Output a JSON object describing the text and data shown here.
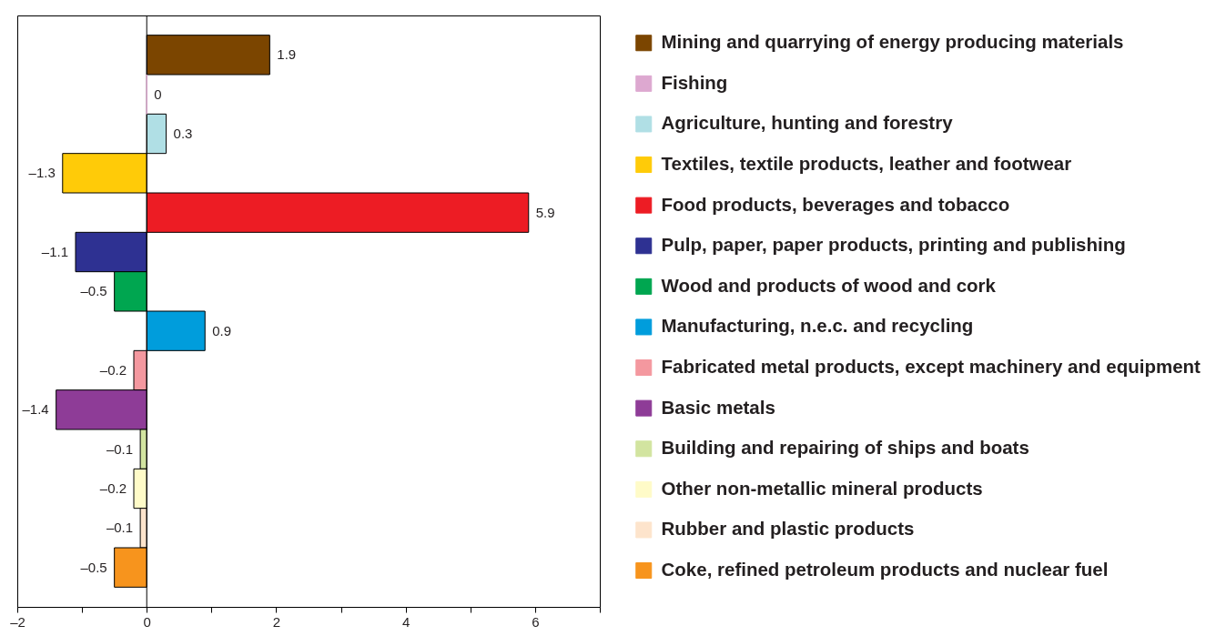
{
  "chart_data": {
    "type": "bar",
    "orientation": "horizontal",
    "categories": [
      null,
      null,
      null,
      null,
      null,
      null,
      null,
      null,
      null,
      null,
      null,
      null,
      null,
      null
    ],
    "series": [
      {
        "name": "Mining and quarrying of energy producing materials",
        "color": "#7b4500",
        "values": [
          1.9,
          null,
          null,
          null,
          null,
          null,
          null,
          null,
          null,
          null,
          null,
          null,
          null,
          null
        ],
        "value_labels": [
          "1.9",
          null,
          null,
          null,
          null,
          null,
          null,
          null,
          null,
          null,
          null,
          null,
          null,
          null
        ]
      },
      {
        "name": "Fishing",
        "color": "#dda8d0",
        "values": [
          null,
          0,
          null,
          null,
          null,
          null,
          null,
          null,
          null,
          null,
          null,
          null,
          null,
          null
        ],
        "value_labels": [
          null,
          "0",
          null,
          null,
          null,
          null,
          null,
          null,
          null,
          null,
          null,
          null,
          null,
          null
        ]
      },
      {
        "name": "Agriculture, hunting and forestry",
        "color": "#b0dfe5",
        "values": [
          null,
          null,
          0.3,
          null,
          null,
          null,
          null,
          null,
          null,
          null,
          null,
          null,
          null,
          null
        ],
        "value_labels": [
          null,
          null,
          "0.3",
          null,
          null,
          null,
          null,
          null,
          null,
          null,
          null,
          null,
          null,
          null
        ]
      },
      {
        "name": "Textiles, textile products, leather and footwear",
        "color": "#ffcb08",
        "values": [
          null,
          null,
          null,
          -1.3,
          null,
          null,
          null,
          null,
          null,
          null,
          null,
          null,
          null,
          null
        ],
        "value_labels": [
          null,
          null,
          null,
          "–1.3",
          null,
          null,
          null,
          null,
          null,
          null,
          null,
          null,
          null,
          null
        ]
      },
      {
        "name": "Food products, beverages and tobacco",
        "color": "#ed1c24",
        "values": [
          null,
          null,
          null,
          null,
          5.9,
          null,
          null,
          null,
          null,
          null,
          null,
          null,
          null,
          null
        ],
        "value_labels": [
          null,
          null,
          null,
          null,
          "5.9",
          null,
          null,
          null,
          null,
          null,
          null,
          null,
          null,
          null
        ]
      },
      {
        "name": "Pulp, paper, paper products, printing and publishing",
        "color": "#2e3192",
        "values": [
          null,
          null,
          null,
          null,
          null,
          -1.1,
          null,
          null,
          null,
          null,
          null,
          null,
          null,
          null
        ],
        "value_labels": [
          null,
          null,
          null,
          null,
          null,
          "–1.1",
          null,
          null,
          null,
          null,
          null,
          null,
          null,
          null
        ]
      },
      {
        "name": "Wood and products of wood and cork",
        "color": "#00a650",
        "values": [
          null,
          null,
          null,
          null,
          null,
          null,
          -0.5,
          null,
          null,
          null,
          null,
          null,
          null,
          null
        ],
        "value_labels": [
          null,
          null,
          null,
          null,
          null,
          null,
          "–0.5",
          null,
          null,
          null,
          null,
          null,
          null,
          null
        ]
      },
      {
        "name": "Manufacturing, n.e.c. and recycling",
        "color": "#009ddc",
        "values": [
          null,
          null,
          null,
          null,
          null,
          null,
          null,
          0.9,
          null,
          null,
          null,
          null,
          null,
          null
        ],
        "value_labels": [
          null,
          null,
          null,
          null,
          null,
          null,
          null,
          "0.9",
          null,
          null,
          null,
          null,
          null,
          null
        ]
      },
      {
        "name": "Fabricated metal products, except machinery and equipment",
        "color": "#f4989f",
        "values": [
          null,
          null,
          null,
          null,
          null,
          null,
          null,
          null,
          -0.2,
          null,
          null,
          null,
          null,
          null
        ],
        "value_labels": [
          null,
          null,
          null,
          null,
          null,
          null,
          null,
          null,
          "–0.2",
          null,
          null,
          null,
          null,
          null
        ]
      },
      {
        "name": "Basic metals",
        "color": "#8e3c97",
        "values": [
          null,
          null,
          null,
          null,
          null,
          null,
          null,
          null,
          null,
          -1.4,
          null,
          null,
          null,
          null
        ],
        "value_labels": [
          null,
          null,
          null,
          null,
          null,
          null,
          null,
          null,
          null,
          "–1.4",
          null,
          null,
          null,
          null
        ]
      },
      {
        "name": "Building and repairing of ships and boats",
        "color": "#d2e4a0",
        "values": [
          null,
          null,
          null,
          null,
          null,
          null,
          null,
          null,
          null,
          null,
          -0.1,
          null,
          null,
          null
        ],
        "value_labels": [
          null,
          null,
          null,
          null,
          null,
          null,
          null,
          null,
          null,
          null,
          "–0.1",
          null,
          null,
          null
        ]
      },
      {
        "name": "Other non-metallic mineral products",
        "color": "#fffbc8",
        "values": [
          null,
          null,
          null,
          null,
          null,
          null,
          null,
          null,
          null,
          null,
          null,
          -0.2,
          null,
          null
        ],
        "value_labels": [
          null,
          null,
          null,
          null,
          null,
          null,
          null,
          null,
          null,
          null,
          null,
          "–0.2",
          null,
          null
        ]
      },
      {
        "name": "Rubber and plastic products",
        "color": "#fde4cc",
        "values": [
          null,
          null,
          null,
          null,
          null,
          null,
          null,
          null,
          null,
          null,
          null,
          null,
          -0.1,
          null
        ],
        "value_labels": [
          null,
          null,
          null,
          null,
          null,
          null,
          null,
          null,
          null,
          null,
          null,
          null,
          "–0.1",
          null
        ]
      },
      {
        "name": "Coke, refined petroleum products and nuclear fuel",
        "color": "#f7941d",
        "values": [
          null,
          null,
          null,
          null,
          null,
          null,
          null,
          null,
          null,
          null,
          null,
          null,
          null,
          -0.5
        ],
        "value_labels": [
          null,
          null,
          null,
          null,
          null,
          null,
          null,
          null,
          null,
          null,
          null,
          null,
          null,
          "–0.5"
        ]
      }
    ],
    "xlim": [
      -2,
      7
    ],
    "xticks": [
      {
        "value": -2,
        "label": "–2"
      },
      {
        "value": -1,
        "label": null
      },
      0,
      {
        "value": 1,
        "label": null
      },
      2,
      {
        "value": 3,
        "label": null
      },
      4,
      {
        "value": 5,
        "label": null
      },
      6,
      {
        "value": 7,
        "label": null
      }
    ],
    "ref_lines": [
      {
        "axis": "x",
        "value": 0,
        "color": "#000000"
      }
    ],
    "legend": "right",
    "tick_labels": "x"
  }
}
